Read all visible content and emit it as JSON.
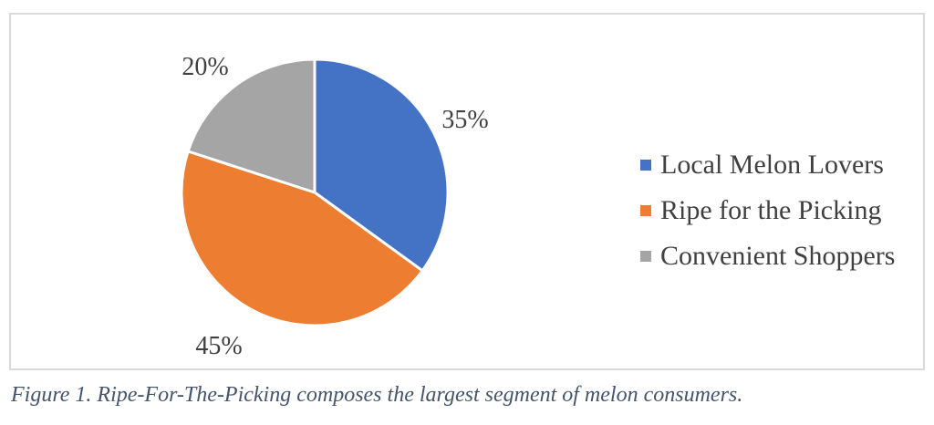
{
  "chart_data": {
    "type": "pie",
    "title": "",
    "categories": [
      "Local Melon Lovers",
      "Ripe for the Picking",
      "Convenient Shoppers"
    ],
    "values": [
      35,
      45,
      20
    ],
    "data_labels": [
      "35%",
      "45%",
      "20%"
    ],
    "colors": [
      "#4472c4",
      "#ed7d31",
      "#a5a5a5"
    ],
    "legend_position": "right",
    "start_angle": "12 o'clock",
    "direction": "clockwise"
  },
  "caption": "Figure 1. Ripe-For-The-Picking composes the largest segment of melon consumers."
}
